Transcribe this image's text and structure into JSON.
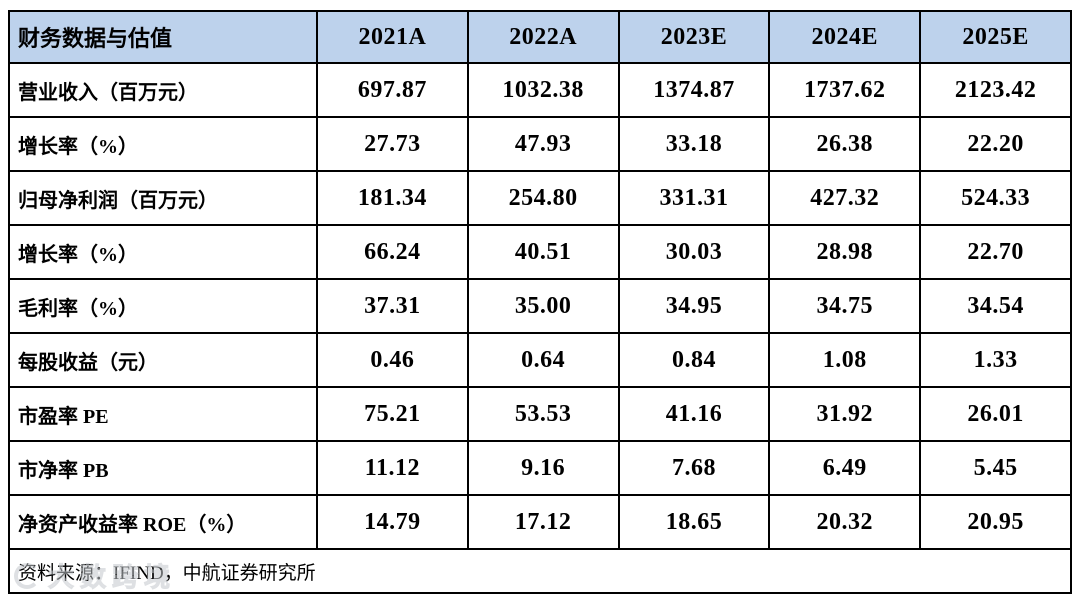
{
  "chart_data": {
    "type": "table",
    "title": "财务数据与估值",
    "columns": [
      "2021A",
      "2022A",
      "2023E",
      "2024E",
      "2025E"
    ],
    "rows": [
      {
        "label": "营业收入（百万元）",
        "values": [
          "697.87",
          "1032.38",
          "1374.87",
          "1737.62",
          "2123.42"
        ]
      },
      {
        "label": "增长率（%）",
        "values": [
          "27.73",
          "47.93",
          "33.18",
          "26.38",
          "22.20"
        ]
      },
      {
        "label": "归母净利润（百万元）",
        "values": [
          "181.34",
          "254.80",
          "331.31",
          "427.32",
          "524.33"
        ]
      },
      {
        "label": "增长率（%）",
        "values": [
          "66.24",
          "40.51",
          "30.03",
          "28.98",
          "22.70"
        ]
      },
      {
        "label": "毛利率（%）",
        "values": [
          "37.31",
          "35.00",
          "34.95",
          "34.75",
          "34.54"
        ]
      },
      {
        "label": "每股收益（元）",
        "values": [
          "0.46",
          "0.64",
          "0.84",
          "1.08",
          "1.33"
        ]
      },
      {
        "label": "市盈率 PE",
        "values": [
          "75.21",
          "53.53",
          "41.16",
          "31.92",
          "26.01"
        ]
      },
      {
        "label": "市净率 PB",
        "values": [
          "11.12",
          "9.16",
          "7.68",
          "6.49",
          "5.45"
        ]
      },
      {
        "label": "净资产收益率 ROE（%）",
        "values": [
          "14.79",
          "17.12",
          "18.65",
          "20.32",
          "20.95"
        ]
      }
    ],
    "source_note": "资料来源：IFIND，中航证券研究所",
    "layout": {
      "grid": "on",
      "header_row_shaded": true,
      "value_alignment": "center"
    }
  },
  "watermark": {
    "text": "大数跨境"
  },
  "colors": {
    "header_bg": "#bdd2ec",
    "border": "#000000",
    "text": "#000000"
  }
}
